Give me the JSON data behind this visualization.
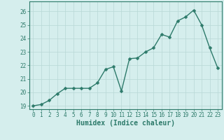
{
  "x": [
    0,
    1,
    2,
    3,
    4,
    5,
    6,
    7,
    8,
    9,
    10,
    11,
    12,
    13,
    14,
    15,
    16,
    17,
    18,
    19,
    20,
    21,
    22,
    23
  ],
  "y": [
    19.0,
    19.1,
    19.4,
    19.9,
    20.3,
    20.3,
    20.3,
    20.3,
    20.7,
    21.7,
    21.9,
    20.1,
    22.5,
    22.55,
    23.0,
    23.3,
    24.3,
    24.1,
    25.3,
    25.6,
    26.1,
    25.0,
    23.3,
    21.8
  ],
  "line_color": "#2d7a6a",
  "marker_color": "#2d7a6a",
  "bg_color": "#d5eeed",
  "grid_color": "#b8d8d5",
  "xlabel": "Humidex (Indice chaleur)",
  "ylabel": "",
  "xlim": [
    -0.5,
    23.5
  ],
  "ylim": [
    18.75,
    26.75
  ],
  "yticks": [
    19,
    20,
    21,
    22,
    23,
    24,
    25,
    26
  ],
  "xticks": [
    0,
    1,
    2,
    3,
    4,
    5,
    6,
    7,
    8,
    9,
    10,
    11,
    12,
    13,
    14,
    15,
    16,
    17,
    18,
    19,
    20,
    21,
    22,
    23
  ],
  "marker_size": 2.5,
  "line_width": 1.0,
  "tick_label_fontsize": 5.5,
  "xlabel_fontsize": 7,
  "axis_color": "#2d7a6a",
  "spine_color": "#2d7a6a"
}
